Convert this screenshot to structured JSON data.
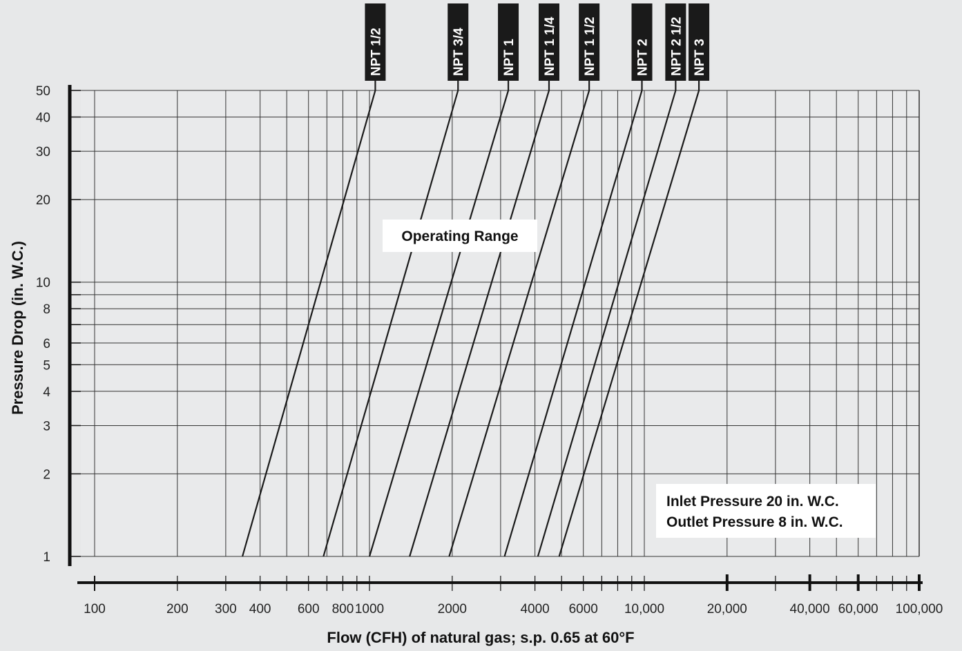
{
  "chart_data": {
    "type": "line",
    "title": "",
    "xlabel": "Flow (CFH) of natural gas; s.p. 0.65 at 60°F",
    "ylabel": "Pressure Drop (in. W.C.)",
    "x_scale": "log",
    "y_scale": "log",
    "xlim": [
      100,
      100000
    ],
    "ylim": [
      1,
      50
    ],
    "grid": true,
    "x_tick_labels": [
      {
        "value": 100,
        "label": "100"
      },
      {
        "value": 200,
        "label": "200"
      },
      {
        "value": 300,
        "label": "300"
      },
      {
        "value": 400,
        "label": "400"
      },
      {
        "value": 600,
        "label": "600"
      },
      {
        "value": 800,
        "label": "800"
      },
      {
        "value": 1000,
        "label": "1000"
      },
      {
        "value": 2000,
        "label": "2000"
      },
      {
        "value": 4000,
        "label": "4000"
      },
      {
        "value": 6000,
        "label": "6000"
      },
      {
        "value": 10000,
        "label": "10,000"
      },
      {
        "value": 20000,
        "label": "20,000"
      },
      {
        "value": 40000,
        "label": "40,000"
      },
      {
        "value": 60000,
        "label": "60,000"
      },
      {
        "value": 100000,
        "label": "100,000"
      }
    ],
    "y_tick_labels": [
      {
        "value": 1,
        "label": "1"
      },
      {
        "value": 2,
        "label": "2"
      },
      {
        "value": 3,
        "label": "3"
      },
      {
        "value": 4,
        "label": "4"
      },
      {
        "value": 5,
        "label": "5"
      },
      {
        "value": 6,
        "label": "6"
      },
      {
        "value": 8,
        "label": "8"
      },
      {
        "value": 10,
        "label": "10"
      },
      {
        "value": 20,
        "label": "20"
      },
      {
        "value": 30,
        "label": "30"
      },
      {
        "value": 40,
        "label": "40"
      },
      {
        "value": 50,
        "label": "50"
      }
    ],
    "series": [
      {
        "name": "NPT 1/2",
        "x": [
          345,
          1050
        ],
        "y": [
          1,
          50
        ]
      },
      {
        "name": "NPT 3/4",
        "x": [
          680,
          2100
        ],
        "y": [
          1,
          50
        ]
      },
      {
        "name": "NPT 1",
        "x": [
          1000,
          3200
        ],
        "y": [
          1,
          50
        ]
      },
      {
        "name": "NPT 1 1/4",
        "x": [
          1400,
          4500
        ],
        "y": [
          1,
          50
        ]
      },
      {
        "name": "NPT 1 1/2",
        "x": [
          1950,
          6300
        ],
        "y": [
          1,
          50
        ]
      },
      {
        "name": "NPT 2",
        "x": [
          3100,
          9800
        ],
        "y": [
          1,
          50
        ]
      },
      {
        "name": "NPT 2 1/2",
        "x": [
          4100,
          13000
        ],
        "y": [
          1,
          50
        ]
      },
      {
        "name": "NPT 3",
        "x": [
          4900,
          15800
        ],
        "y": [
          1,
          50
        ]
      }
    ],
    "operating_range": {
      "label": "Operating Range",
      "y_range": [
        2,
        50
      ],
      "left_boundary": "NPT 1/2",
      "right_boundary": "NPT 3",
      "fill_color": "#d4d5d6"
    },
    "annotations": [
      "Inlet Pressure 20 in. W.C.",
      "Outlet Pressure 8 in. W.C."
    ],
    "colors": {
      "background": "#e7e8e9",
      "plot_background": "#e9eaeb",
      "label_tag": "#1a1a1a",
      "lines": "#1a1a1a"
    }
  }
}
